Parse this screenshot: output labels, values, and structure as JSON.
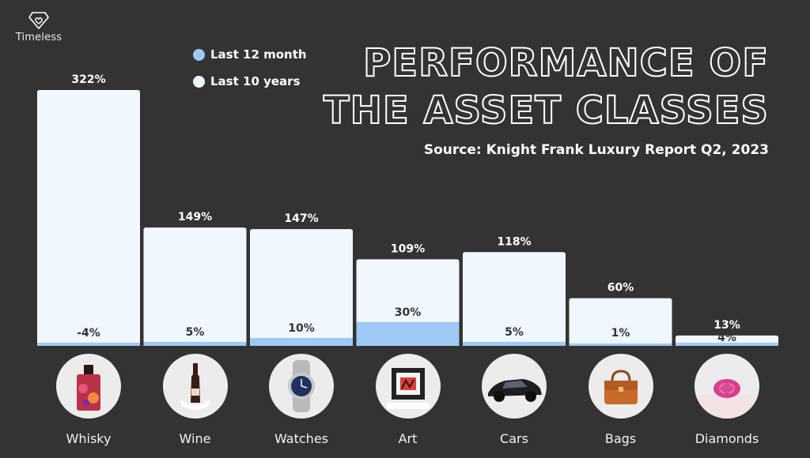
{
  "brand": {
    "name": "Timeless",
    "icon": "diamond-heart-icon"
  },
  "colors": {
    "background": "#333333",
    "last_10_years": "#f0f7ff",
    "last_12_month": "#9fcaf6",
    "text": "#ffffff",
    "value_text": "#333333"
  },
  "chart_data": {
    "type": "bar",
    "title": "PERFORMANCE OF THE ASSET CLASSES",
    "title_lines": [
      "PERFORMANCE OF",
      "THE ASSET CLASSES"
    ],
    "subtitle": "Source: Knight Frank Luxury Report Q2, 2023",
    "legend": {
      "placement": "top-left",
      "entries": [
        "Last 12 month",
        "Last 10 years"
      ]
    },
    "categories": [
      "Whisky",
      "Wine",
      "Watches",
      "Art",
      "Cars",
      "Bags",
      "Diamonds"
    ],
    "series": [
      {
        "name": "Last 10 years",
        "values": [
          322,
          149,
          147,
          109,
          118,
          60,
          13
        ],
        "labels": [
          "322%",
          "149%",
          "147%",
          "109%",
          "118%",
          "60%",
          "13%"
        ]
      },
      {
        "name": "Last 12 month",
        "values": [
          -4,
          5,
          10,
          30,
          5,
          1,
          4
        ],
        "labels": [
          "-4%",
          "5%",
          "10%",
          "30%",
          "5%",
          "1%",
          "4%"
        ]
      }
    ],
    "ylim": [
      0,
      322
    ],
    "grid": false,
    "xlabel": "",
    "ylabel": ""
  },
  "thumbnails": [
    {
      "icon": "whisky-bottle-icon"
    },
    {
      "icon": "wine-bottle-icon"
    },
    {
      "icon": "wristwatch-icon"
    },
    {
      "icon": "framed-art-icon"
    },
    {
      "icon": "sports-car-icon"
    },
    {
      "icon": "handbag-icon"
    },
    {
      "icon": "pink-diamond-icon"
    }
  ]
}
